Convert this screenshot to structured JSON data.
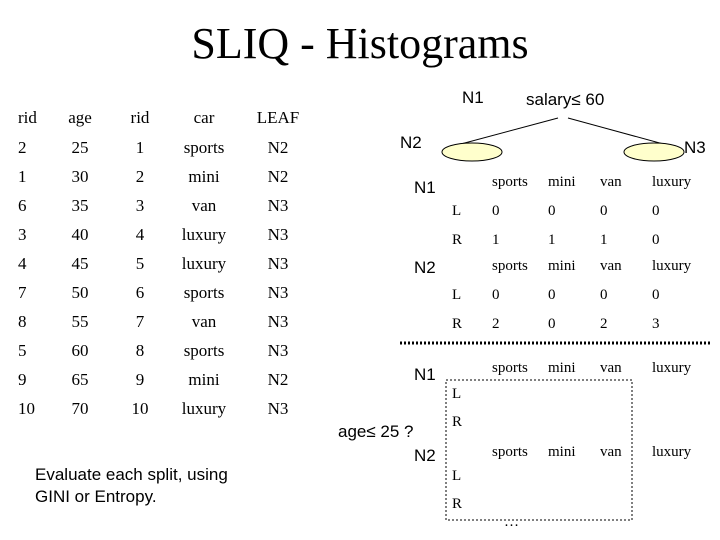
{
  "title": "SLIQ - Histograms",
  "age_list": {
    "headers": [
      "rid",
      "age"
    ],
    "rows": [
      [
        "2",
        "25"
      ],
      [
        "1",
        "30"
      ],
      [
        "6",
        "35"
      ],
      [
        "3",
        "40"
      ],
      [
        "4",
        "45"
      ],
      [
        "7",
        "50"
      ],
      [
        "8",
        "55"
      ],
      [
        "5",
        "60"
      ],
      [
        "9",
        "65"
      ],
      [
        "10",
        "70"
      ]
    ]
  },
  "car_list": {
    "headers": [
      "rid",
      "car",
      "LEAF"
    ],
    "rows": [
      [
        "1",
        "sports",
        "N2"
      ],
      [
        "2",
        "mini",
        "N2"
      ],
      [
        "3",
        "van",
        "N3"
      ],
      [
        "4",
        "luxury",
        "N3"
      ],
      [
        "5",
        "luxury",
        "N3"
      ],
      [
        "6",
        "sports",
        "N3"
      ],
      [
        "7",
        "van",
        "N3"
      ],
      [
        "8",
        "sports",
        "N3"
      ],
      [
        "9",
        "mini",
        "N2"
      ],
      [
        "10",
        "luxury",
        "N3"
      ]
    ]
  },
  "tree": {
    "root_label": "N1",
    "root_condition": "salary≤ 60",
    "left_child": "N2",
    "right_child": "N3"
  },
  "hist_top": {
    "columns": [
      "sports",
      "mini",
      "van",
      "luxury"
    ],
    "n1": {
      "label": "N1",
      "L": [
        "0",
        "0",
        "0",
        "0"
      ],
      "R": [
        "1",
        "1",
        "1",
        "0"
      ]
    },
    "n2": {
      "label": "N2",
      "L": [
        "0",
        "0",
        "0",
        "0"
      ],
      "R": [
        "2",
        "0",
        "2",
        "3"
      ]
    }
  },
  "hist_bottom": {
    "columns": [
      "sports",
      "mini",
      "van",
      "luxury"
    ],
    "n1_label": "N1",
    "n2_label": "N2",
    "row_L": "L",
    "row_R": "R",
    "ellipsis": "…"
  },
  "split_condition": "age≤ 25 ?",
  "caption_line1": "Evaluate each split, using",
  "caption_line2": "GINI or Entropy."
}
